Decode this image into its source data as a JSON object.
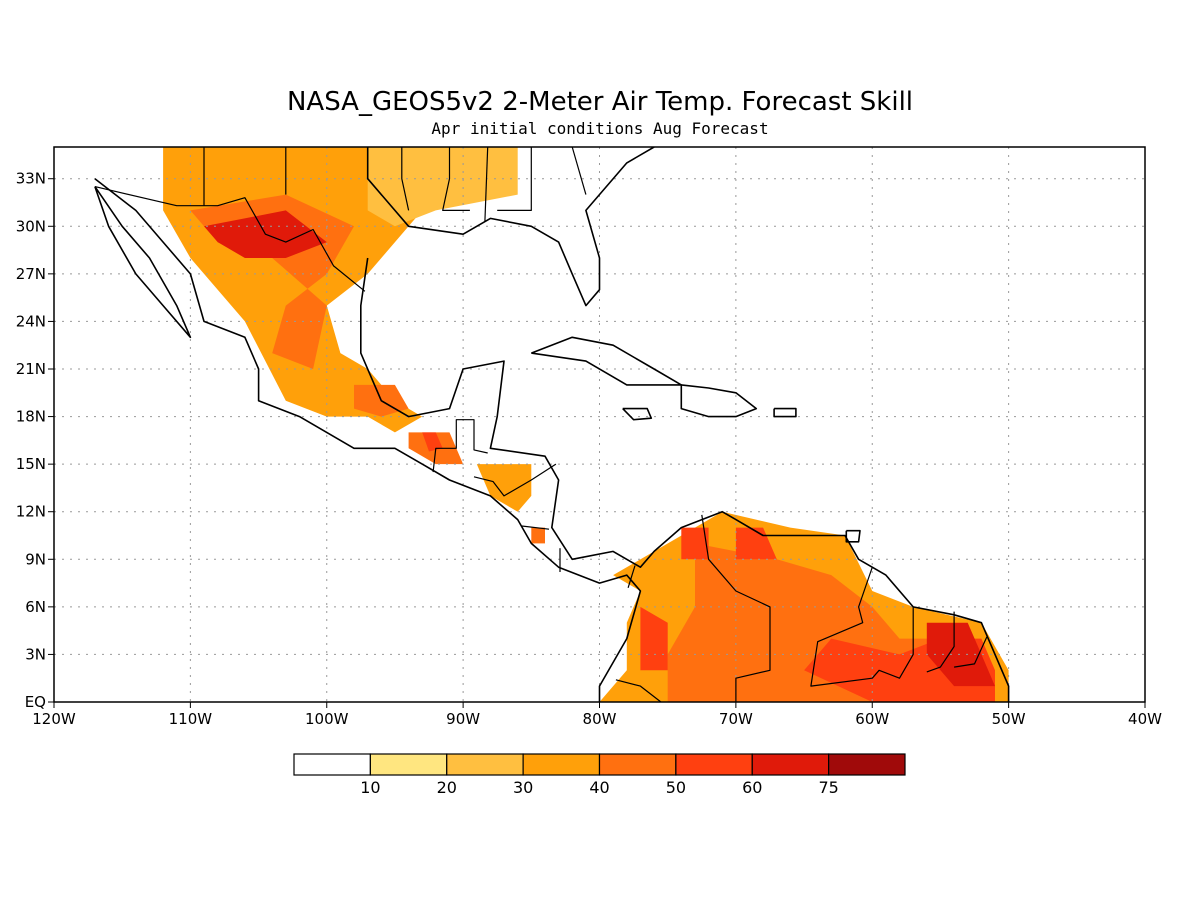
{
  "title": "NASA_GEOS5v2 2-Meter Air Temp. Forecast Skill",
  "subtitle": "Apr initial conditions  Aug Forecast",
  "map": {
    "lon_range": [
      -120,
      -40
    ],
    "lat_range": [
      0,
      35
    ],
    "x_ticks": [
      {
        "lon": -120,
        "label": "120W"
      },
      {
        "lon": -110,
        "label": "110W"
      },
      {
        "lon": -100,
        "label": "100W"
      },
      {
        "lon": -90,
        "label": "90W"
      },
      {
        "lon": -80,
        "label": "80W"
      },
      {
        "lon": -70,
        "label": "70W"
      },
      {
        "lon": -60,
        "label": "60W"
      },
      {
        "lon": -50,
        "label": "50W"
      },
      {
        "lon": -40,
        "label": "40W"
      }
    ],
    "y_ticks": [
      {
        "lat": 0,
        "label": "EQ"
      },
      {
        "lat": 3,
        "label": "3N"
      },
      {
        "lat": 6,
        "label": "6N"
      },
      {
        "lat": 9,
        "label": "9N"
      },
      {
        "lat": 12,
        "label": "12N"
      },
      {
        "lat": 15,
        "label": "15N"
      },
      {
        "lat": 18,
        "label": "18N"
      },
      {
        "lat": 21,
        "label": "21N"
      },
      {
        "lat": 24,
        "label": "24N"
      },
      {
        "lat": 27,
        "label": "27N"
      },
      {
        "lat": 30,
        "label": "30N"
      },
      {
        "lat": 33,
        "label": "33N"
      }
    ],
    "grid": true
  },
  "colorbar": {
    "labels": [
      "10",
      "20",
      "30",
      "40",
      "50",
      "60",
      "75"
    ],
    "colors": [
      "#ffffff",
      "#ffe680",
      "#ffbf40",
      "#ffa00a",
      "#ff7010",
      "#ff4010",
      "#e01a0a",
      "#a00a0a"
    ]
  },
  "skill_regions": [
    {
      "level": 3,
      "poly": [
        [
          -112,
          35
        ],
        [
          -93,
          35
        ],
        [
          -93,
          31
        ],
        [
          -97,
          27
        ],
        [
          -100,
          25
        ],
        [
          -99,
          22
        ],
        [
          -97,
          21
        ],
        [
          -95,
          19
        ],
        [
          -93,
          18
        ],
        [
          -95,
          17
        ],
        [
          -97,
          18
        ],
        [
          -100,
          18
        ],
        [
          -103,
          19
        ],
        [
          -106,
          24
        ],
        [
          -110,
          28
        ],
        [
          -112,
          31
        ]
      ]
    },
    {
      "level": 2,
      "poly": [
        [
          -97,
          35
        ],
        [
          -86,
          35
        ],
        [
          -86,
          32
        ],
        [
          -92,
          31
        ],
        [
          -95,
          30
        ],
        [
          -97,
          31
        ]
      ]
    },
    {
      "level": 4,
      "poly": [
        [
          -110,
          31
        ],
        [
          -103,
          32
        ],
        [
          -98,
          30
        ],
        [
          -100,
          27
        ],
        [
          -103,
          25
        ],
        [
          -104,
          22
        ],
        [
          -101,
          21
        ],
        [
          -100,
          25
        ],
        [
          -104,
          28
        ],
        [
          -108,
          29
        ]
      ]
    },
    {
      "level": 6,
      "poly": [
        [
          -109,
          30
        ],
        [
          -103,
          31
        ],
        [
          -100,
          29
        ],
        [
          -103,
          28
        ],
        [
          -106,
          28
        ],
        [
          -108,
          29
        ]
      ]
    },
    {
      "level": 4,
      "poly": [
        [
          -98,
          20
        ],
        [
          -95,
          20
        ],
        [
          -94,
          18.5
        ],
        [
          -96,
          18
        ],
        [
          -98,
          18.5
        ]
      ]
    },
    {
      "level": 4,
      "poly": [
        [
          -94,
          17
        ],
        [
          -91,
          17
        ],
        [
          -90,
          15
        ],
        [
          -92,
          15
        ],
        [
          -94,
          16
        ]
      ]
    },
    {
      "level": 5,
      "poly": [
        [
          -93,
          17
        ],
        [
          -92,
          17
        ],
        [
          -91.5,
          16
        ],
        [
          -92.5,
          15.8
        ]
      ]
    },
    {
      "level": 3,
      "poly": [
        [
          -89,
          15
        ],
        [
          -85,
          15
        ],
        [
          -85,
          13
        ],
        [
          -86,
          12
        ],
        [
          -88,
          13
        ]
      ]
    },
    {
      "level": 4,
      "poly": [
        [
          -85,
          11
        ],
        [
          -84,
          11
        ],
        [
          -84,
          10
        ],
        [
          -85,
          10
        ]
      ]
    },
    {
      "level": 3,
      "poly": [
        [
          -79,
          8
        ],
        [
          -76,
          9.5
        ],
        [
          -73,
          11
        ],
        [
          -71,
          12
        ],
        [
          -66,
          11
        ],
        [
          -62,
          10.5
        ],
        [
          -60,
          7
        ],
        [
          -57,
          6
        ],
        [
          -52,
          5
        ],
        [
          -50,
          2
        ],
        [
          -50,
          0
        ],
        [
          -80,
          0
        ],
        [
          -78,
          2
        ],
        [
          -78,
          5
        ],
        [
          -77,
          7
        ]
      ]
    },
    {
      "level": 4,
      "poly": [
        [
          -73,
          10
        ],
        [
          -67,
          9
        ],
        [
          -63,
          8
        ],
        [
          -60,
          6
        ],
        [
          -58,
          4
        ],
        [
          -55,
          4
        ],
        [
          -52,
          3
        ],
        [
          -51,
          1
        ],
        [
          -51,
          0
        ],
        [
          -75,
          0
        ],
        [
          -75,
          3
        ],
        [
          -73,
          6
        ]
      ]
    },
    {
      "level": 5,
      "poly": [
        [
          -77,
          6
        ],
        [
          -75,
          5
        ],
        [
          -75,
          2
        ],
        [
          -77,
          2
        ]
      ]
    },
    {
      "level": 5,
      "poly": [
        [
          -70,
          11
        ],
        [
          -68,
          11
        ],
        [
          -67,
          9
        ],
        [
          -70,
          9
        ]
      ]
    },
    {
      "level": 5,
      "poly": [
        [
          -74,
          11
        ],
        [
          -72,
          11
        ],
        [
          -72,
          9
        ],
        [
          -74,
          9
        ]
      ]
    },
    {
      "level": 5,
      "poly": [
        [
          -63,
          4
        ],
        [
          -58,
          3
        ],
        [
          -55,
          4
        ],
        [
          -52,
          4
        ],
        [
          -51,
          2
        ],
        [
          -51,
          0
        ],
        [
          -60,
          0
        ],
        [
          -65,
          2
        ]
      ]
    },
    {
      "level": 6,
      "poly": [
        [
          -56,
          5
        ],
        [
          -53,
          5
        ],
        [
          -52,
          3
        ],
        [
          -51,
          1
        ],
        [
          -54,
          1
        ],
        [
          -56,
          3
        ]
      ]
    }
  ],
  "coastlines": [
    [
      [
        -117,
        33
      ],
      [
        -114,
        31
      ],
      [
        -112,
        29
      ],
      [
        -110,
        27
      ],
      [
        -109,
        24
      ],
      [
        -106,
        23
      ],
      [
        -105,
        21
      ],
      [
        -105,
        19
      ],
      [
        -102,
        18
      ],
      [
        -98,
        16
      ],
      [
        -95,
        16
      ],
      [
        -93,
        15
      ],
      [
        -91,
        14
      ],
      [
        -88,
        13
      ],
      [
        -86,
        11.5
      ],
      [
        -85,
        10
      ],
      [
        -83,
        8.5
      ],
      [
        -80,
        7.5
      ],
      [
        -78,
        8
      ],
      [
        -77,
        7
      ],
      [
        -78,
        4
      ],
      [
        -80,
        1
      ],
      [
        -80,
        0
      ]
    ],
    [
      [
        -117,
        32.5
      ],
      [
        -116,
        30
      ],
      [
        -114,
        27
      ],
      [
        -112,
        25
      ],
      [
        -110,
        23
      ],
      [
        -111,
        25
      ],
      [
        -113,
        28
      ],
      [
        -115,
        30
      ],
      [
        -117,
        32.5
      ]
    ],
    [
      [
        -97,
        35
      ],
      [
        -97,
        33
      ],
      [
        -94,
        30
      ],
      [
        -90,
        29.5
      ],
      [
        -88,
        30.5
      ],
      [
        -85,
        30
      ],
      [
        -83,
        29
      ],
      [
        -82,
        27
      ],
      [
        -81,
        25
      ],
      [
        -80,
        26
      ],
      [
        -80,
        28
      ],
      [
        -81,
        31
      ],
      [
        -78,
        34
      ],
      [
        -76,
        35
      ]
    ],
    [
      [
        -97,
        28
      ],
      [
        -97.5,
        25
      ],
      [
        -97.5,
        22
      ],
      [
        -96,
        19
      ],
      [
        -94,
        18
      ],
      [
        -91,
        18.5
      ],
      [
        -90,
        21
      ],
      [
        -87,
        21.5
      ],
      [
        -87.5,
        18
      ],
      [
        -88,
        16
      ],
      [
        -84,
        15.5
      ],
      [
        -83,
        14
      ],
      [
        -83.5,
        11
      ],
      [
        -82,
        9
      ],
      [
        -79,
        9.5
      ],
      [
        -77,
        8.5
      ],
      [
        -76,
        9.5
      ],
      [
        -74,
        11
      ],
      [
        -71,
        12
      ],
      [
        -70,
        11.5
      ],
      [
        -68,
        10.5
      ],
      [
        -64,
        10.5
      ],
      [
        -62,
        10.5
      ],
      [
        -61,
        9
      ],
      [
        -59,
        8
      ],
      [
        -57,
        6
      ],
      [
        -54,
        5.5
      ],
      [
        -52,
        5
      ],
      [
        -51,
        3
      ],
      [
        -50,
        1
      ],
      [
        -50,
        0
      ]
    ],
    [
      [
        -85,
        22
      ],
      [
        -82,
        23
      ],
      [
        -79,
        22.5
      ],
      [
        -76,
        21
      ],
      [
        -74,
        20
      ],
      [
        -78,
        20
      ],
      [
        -81,
        21.5
      ],
      [
        -85,
        22
      ]
    ],
    [
      [
        -74,
        20
      ],
      [
        -72,
        19.8
      ],
      [
        -70,
        19.5
      ],
      [
        -68.5,
        18.5
      ],
      [
        -70,
        18
      ],
      [
        -72,
        18
      ],
      [
        -74,
        18.5
      ],
      [
        -74,
        20
      ]
    ],
    [
      [
        -78.3,
        18.5
      ],
      [
        -76.5,
        18.5
      ],
      [
        -76.2,
        17.9
      ],
      [
        -77.5,
        17.8
      ],
      [
        -78.3,
        18.5
      ]
    ],
    [
      [
        -67.2,
        18.5
      ],
      [
        -65.6,
        18.5
      ],
      [
        -65.6,
        18
      ],
      [
        -67.2,
        18
      ],
      [
        -67.2,
        18.5
      ]
    ],
    [
      [
        -61.9,
        10.8
      ],
      [
        -60.9,
        10.8
      ],
      [
        -61,
        10.1
      ],
      [
        -61.9,
        10.1
      ],
      [
        -61.9,
        10.8
      ]
    ]
  ],
  "borders": [
    [
      [
        -117,
        32.5
      ],
      [
        -111,
        31.3
      ],
      [
        -108,
        31.3
      ],
      [
        -106,
        31.8
      ],
      [
        -104.5,
        29.5
      ],
      [
        -103,
        29
      ],
      [
        -101,
        29.8
      ],
      [
        -99.5,
        27.5
      ],
      [
        -97.2,
        25.9
      ]
    ],
    [
      [
        -92.2,
        14.5
      ],
      [
        -92,
        16
      ],
      [
        -90.5,
        16
      ],
      [
        -90.5,
        17.8
      ],
      [
        -89.2,
        17.8
      ],
      [
        -89.2,
        15.9
      ],
      [
        -88.2,
        15.7
      ]
    ],
    [
      [
        -89.2,
        14.2
      ],
      [
        -87.8,
        13.9
      ],
      [
        -87,
        13
      ],
      [
        -85,
        14
      ],
      [
        -83.2,
        15
      ]
    ],
    [
      [
        -85.7,
        11.1
      ],
      [
        -83.7,
        10.9
      ]
    ],
    [
      [
        -82.9,
        9.7
      ],
      [
        -82.9,
        8.2
      ]
    ],
    [
      [
        -77.4,
        8.6
      ],
      [
        -77.9,
        7.2
      ]
    ],
    [
      [
        -72.5,
        11.8
      ],
      [
        -72,
        9
      ],
      [
        -70,
        7
      ],
      [
        -67.5,
        6
      ],
      [
        -67.5,
        2
      ],
      [
        -70,
        1.5
      ],
      [
        -70,
        0
      ]
    ],
    [
      [
        -60,
        8.5
      ],
      [
        -61,
        6
      ],
      [
        -60.7,
        5
      ],
      [
        -64,
        3.8
      ],
      [
        -64.5,
        1
      ],
      [
        -60,
        1.5
      ],
      [
        -59.5,
        2
      ],
      [
        -58,
        1.5
      ],
      [
        -57,
        3
      ],
      [
        -57,
        6
      ]
    ],
    [
      [
        -54,
        5.7
      ],
      [
        -54,
        3.5
      ],
      [
        -55,
        2.2
      ],
      [
        -56,
        1.9
      ]
    ],
    [
      [
        -51.6,
        4.1
      ],
      [
        -52.5,
        2.4
      ],
      [
        -54,
        2.2
      ]
    ],
    [
      [
        -75.5,
        0
      ],
      [
        -77,
        1
      ],
      [
        -78.8,
        1.4
      ]
    ],
    [
      [
        -109,
        35
      ],
      [
        -109,
        31.3
      ]
    ],
    [
      [
        -103,
        35
      ],
      [
        -103,
        32
      ]
    ],
    [
      [
        -94.5,
        35
      ],
      [
        -94.5,
        33
      ],
      [
        -94,
        31
      ]
    ],
    [
      [
        -91,
        35
      ],
      [
        -91,
        33
      ],
      [
        -91.5,
        31
      ],
      [
        -89.5,
        31
      ]
    ],
    [
      [
        -88.2,
        35
      ],
      [
        -88.4,
        30.3
      ]
    ],
    [
      [
        -85,
        35
      ],
      [
        -85,
        31
      ],
      [
        -87.5,
        31
      ]
    ],
    [
      [
        -82,
        35
      ],
      [
        -81,
        32
      ]
    ]
  ]
}
